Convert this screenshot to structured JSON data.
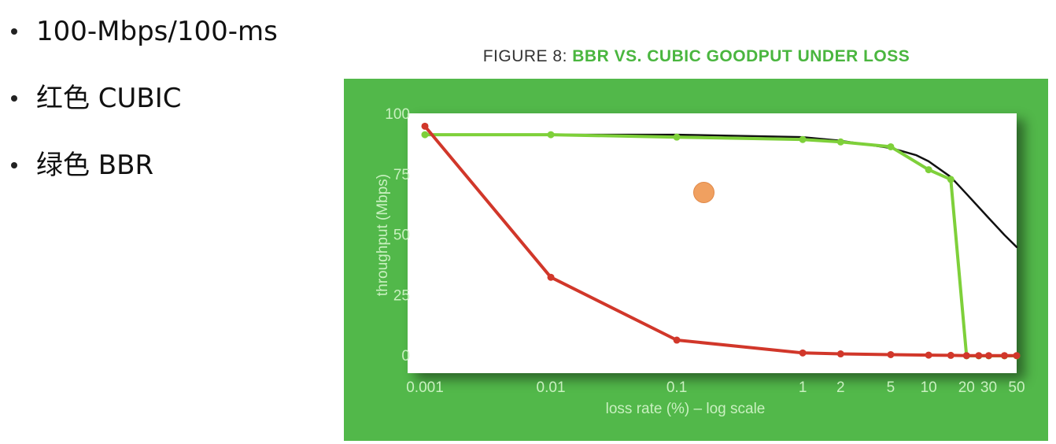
{
  "bullets": [
    {
      "text": "100-Mbps/100-ms"
    },
    {
      "text": "红色 CUBIC"
    },
    {
      "text": "绿色 BBR"
    }
  ],
  "figure": {
    "prefix": "FIGURE 8: ",
    "title": "BBR VS. CUBIC GOODPUT UNDER LOSS"
  },
  "colors": {
    "panel": "#52b84a",
    "bbr": "#7ed03a",
    "cubic": "#d1372a",
    "ideal": "#111111",
    "axis_text": "#c9f0c0"
  },
  "chart_data": {
    "type": "line",
    "title": "BBR VS. CUBIC GOODPUT UNDER LOSS",
    "xlabel": "loss rate (%) – log scale",
    "ylabel": "throughput (Mbps)",
    "x_scale": "log",
    "xlim": [
      0.001,
      50
    ],
    "ylim": [
      0,
      100
    ],
    "x_ticks": [
      {
        "value": 0.001,
        "label": "0.001"
      },
      {
        "value": 0.01,
        "label": "0.01"
      },
      {
        "value": 0.1,
        "label": "0.1"
      },
      {
        "value": 1,
        "label": "1"
      },
      {
        "value": 2,
        "label": "2"
      },
      {
        "value": 5,
        "label": "5"
      },
      {
        "value": 10,
        "label": "10"
      },
      {
        "value": 20,
        "label": "20"
      },
      {
        "value": 30,
        "label": "30"
      },
      {
        "value": 50,
        "label": "50"
      }
    ],
    "y_ticks": [
      {
        "value": 0,
        "label": "0"
      },
      {
        "value": 25,
        "label": "25"
      },
      {
        "value": 50,
        "label": "50"
      },
      {
        "value": 75,
        "label": "75"
      },
      {
        "value": 100,
        "label": "100"
      }
    ],
    "grid": false,
    "series": [
      {
        "key": "ideal",
        "color": "#111111",
        "markers": false,
        "points": [
          [
            0.001,
            91.5
          ],
          [
            0.01,
            91.5
          ],
          [
            0.1,
            91.5
          ],
          [
            1,
            90.5
          ],
          [
            2,
            89
          ],
          [
            5,
            86
          ],
          [
            8,
            83
          ],
          [
            10,
            80.5
          ],
          [
            15,
            74
          ],
          [
            20,
            67
          ],
          [
            30,
            57
          ],
          [
            40,
            50
          ],
          [
            50,
            45
          ]
        ]
      },
      {
        "key": "bbr",
        "color": "#7ed03a",
        "markers": true,
        "points": [
          [
            0.001,
            91.5
          ],
          [
            0.01,
            91.5
          ],
          [
            0.1,
            90.5
          ],
          [
            1,
            89.5
          ],
          [
            2,
            88.5
          ],
          [
            5,
            86.5
          ],
          [
            10,
            77
          ],
          [
            15,
            73
          ],
          [
            20,
            0
          ],
          [
            25,
            0
          ],
          [
            30,
            0
          ],
          [
            40,
            0
          ],
          [
            50,
            0
          ]
        ]
      },
      {
        "key": "cubic",
        "color": "#d1372a",
        "markers": true,
        "points": [
          [
            0.001,
            95
          ],
          [
            0.01,
            32.5
          ],
          [
            0.1,
            6.5
          ],
          [
            1,
            1.2
          ],
          [
            2,
            0.8
          ],
          [
            5,
            0.5
          ],
          [
            10,
            0.3
          ],
          [
            15,
            0.2
          ],
          [
            20,
            0.1
          ],
          [
            25,
            0.1
          ],
          [
            30,
            0.1
          ],
          [
            40,
            0.1
          ],
          [
            50,
            0.1
          ]
        ]
      }
    ]
  }
}
